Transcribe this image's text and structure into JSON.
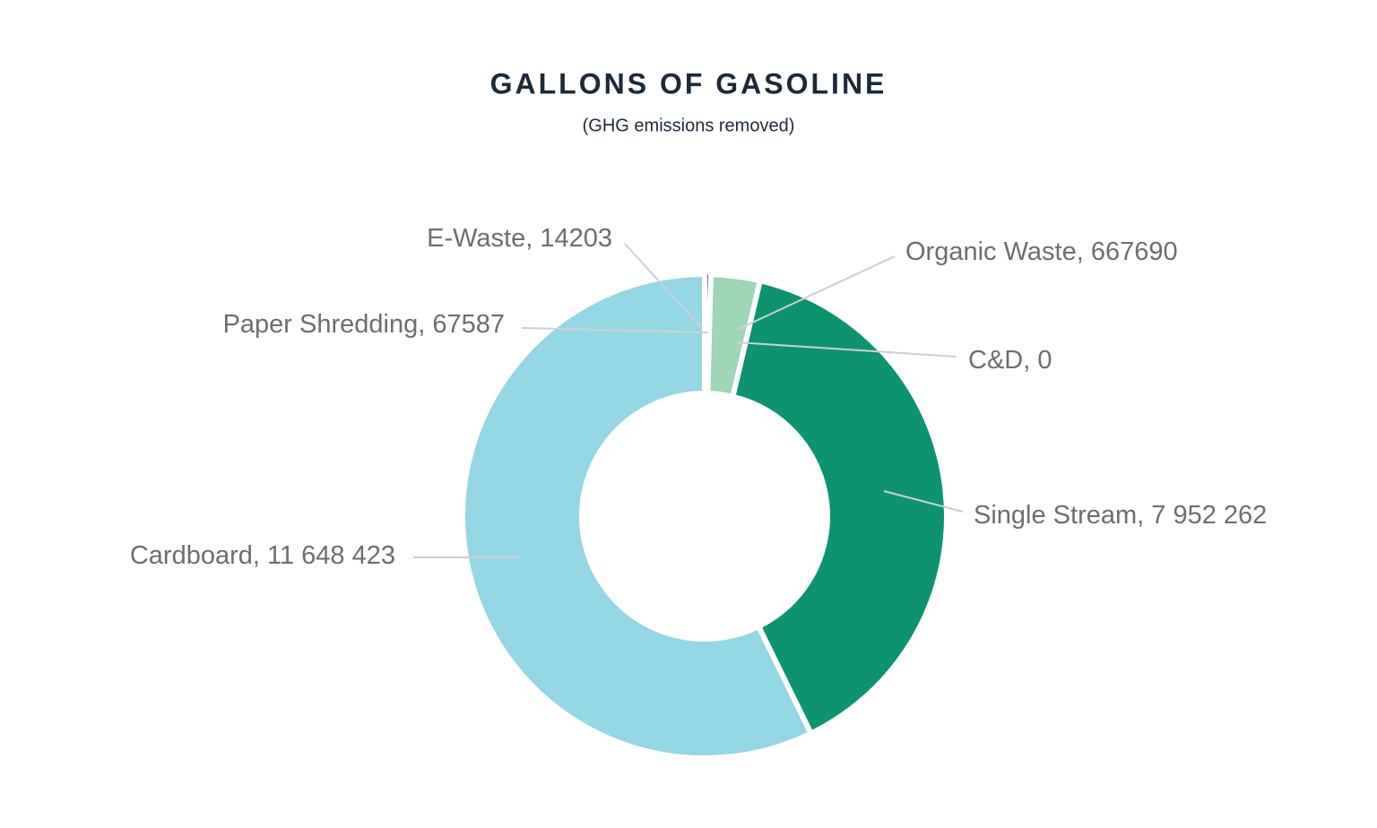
{
  "chart_data": {
    "type": "donut",
    "title": "GALLONS OF GASOLINE",
    "subtitle": "(GHG emissions removed)",
    "categories": [
      "Paper Shredding",
      "E-Waste",
      "Organic Waste",
      "C&D",
      "Single Stream",
      "Cardboard"
    ],
    "values": [
      67587,
      14203,
      667690,
      0,
      7952262,
      11648423
    ],
    "value_labels": [
      "67587",
      "14203",
      "667690",
      "0",
      "7 952 262",
      "11 648 423"
    ],
    "colors": [
      "#1f3a5f",
      "#2b4a78",
      "#9dd5b5",
      "#7fa8c9",
      "#0e9370",
      "#94d7e4"
    ]
  }
}
